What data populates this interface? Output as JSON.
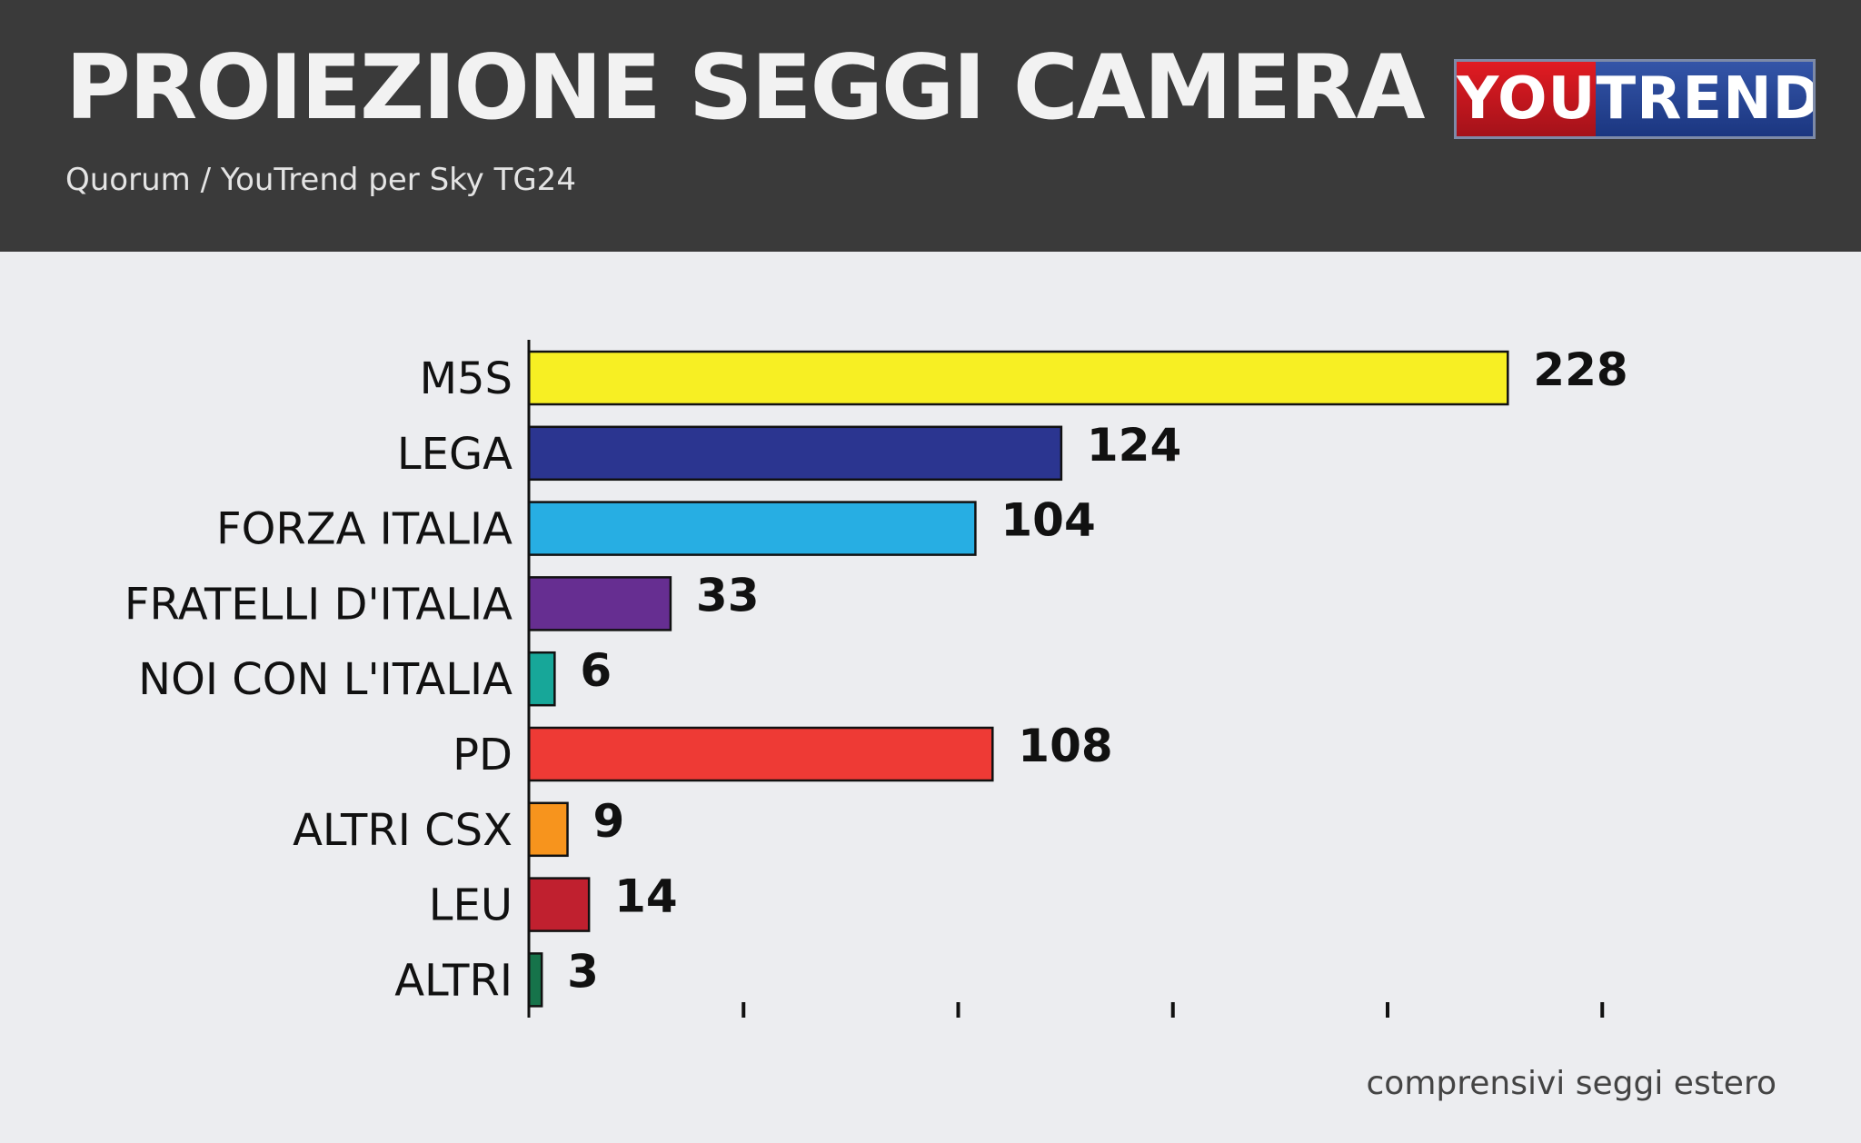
{
  "header": {
    "title": "PROIEZIONE SEGGI CAMERA",
    "subtitle": "Quorum / YouTrend per Sky TG24",
    "logo_you": "YOU",
    "logo_trend": "TREND"
  },
  "note": "comprensivi seggi estero",
  "colors": {
    "header_bg": "#3a3a3a",
    "page_bg": "#ecedf0",
    "logo_red": "#e11b22",
    "logo_blue": "#2a4a9e"
  },
  "chart_data": {
    "type": "bar",
    "orientation": "horizontal",
    "categories": [
      "M5S",
      "LEGA",
      "FORZA ITALIA",
      "FRATELLI D'ITALIA",
      "NOI CON L'ITALIA",
      "PD",
      "ALTRI CSX",
      "LEU",
      "ALTRI"
    ],
    "values": [
      228,
      124,
      104,
      33,
      6,
      108,
      9,
      14,
      3
    ],
    "data_labels": [
      "228",
      "124",
      "104",
      "33",
      "6",
      "108",
      "9",
      "14",
      "3"
    ],
    "colors": [
      "#f7ef23",
      "#2b3590",
      "#27aee3",
      "#662e91",
      "#17a799",
      "#ee3a35",
      "#f7941d",
      "#c0202f",
      "#16734a"
    ],
    "xlim": [
      0,
      250
    ],
    "x_ticks": [
      0,
      50,
      100,
      150,
      200,
      250
    ],
    "x_tick_labels_shown": false,
    "grid": false,
    "legend": "none"
  }
}
